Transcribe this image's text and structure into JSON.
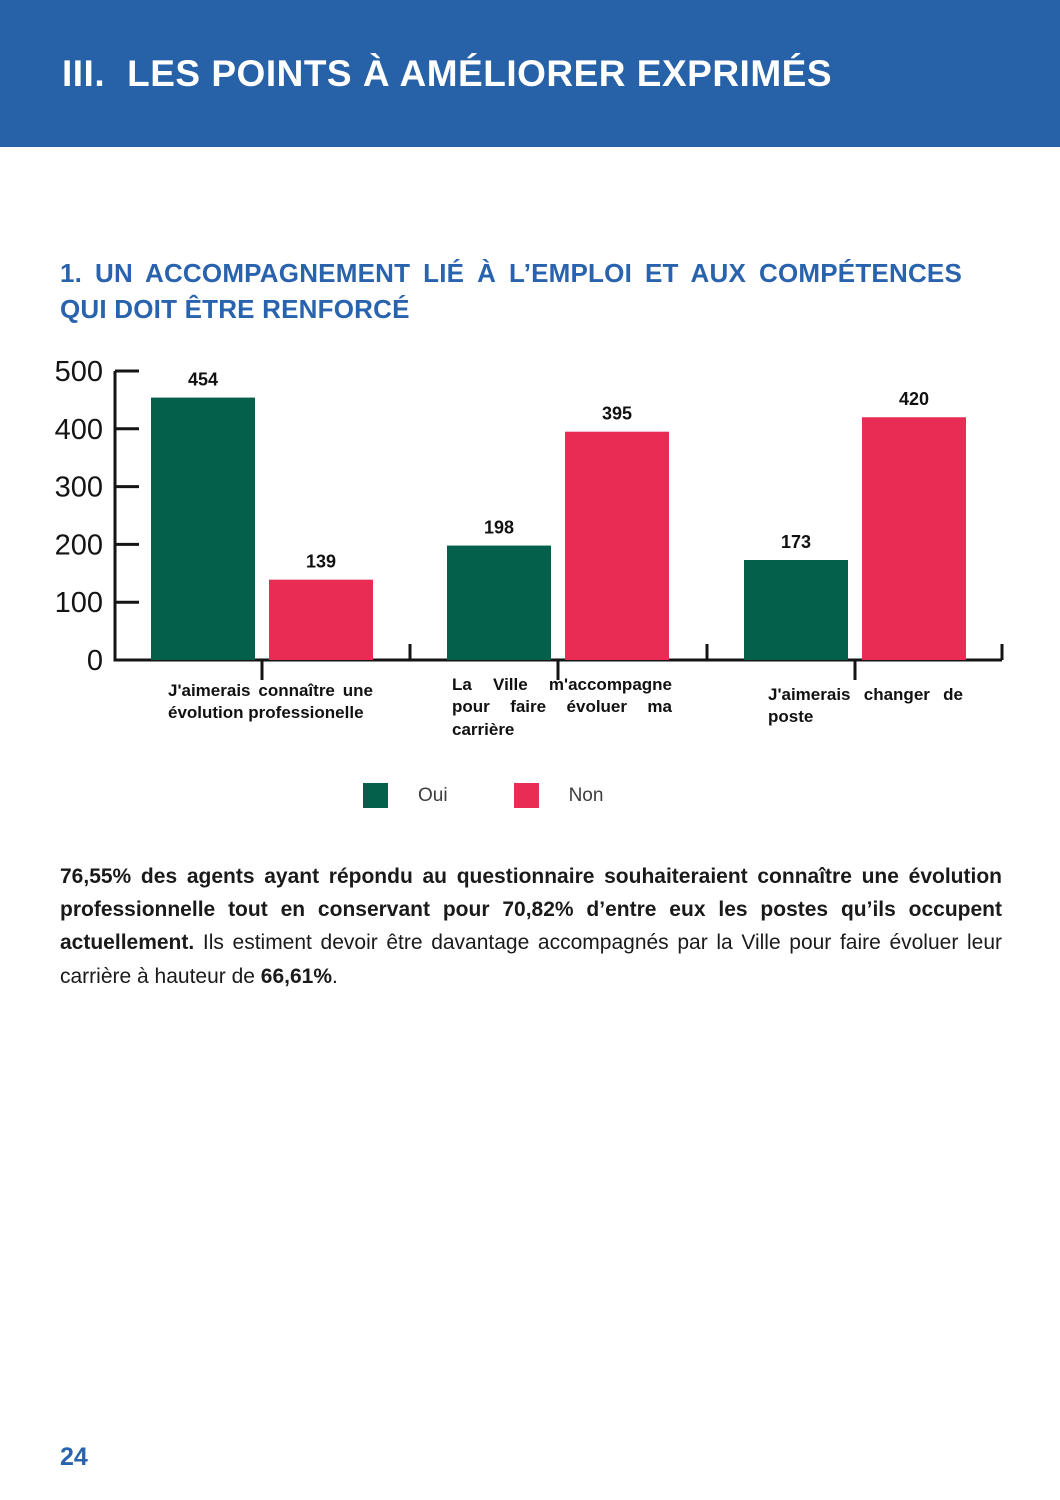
{
  "page": {
    "header": {
      "numeral": "III.",
      "title": "LES POINTS À AMÉLIORER EXPRIMÉS"
    },
    "section_heading": {
      "line1": "1. UN ACCOMPAGNEMENT LIÉ À L’EMPLOI ET AUX COMPÉTENCES",
      "line2": "QUI DOIT ÊTRE RENFORCÉ"
    },
    "page_number": "24"
  },
  "chart_data": {
    "type": "bar",
    "title": "",
    "categories": [
      "J'aimerais connaître une évolution professionelle",
      "La Ville m'accompagne pour faire évoluer ma carrière",
      "J'aimerais changer de poste"
    ],
    "series": [
      {
        "name": "Oui",
        "color": "#04604a",
        "values": [
          454,
          198,
          173
        ]
      },
      {
        "name": "Non",
        "color": "#e92c54",
        "values": [
          139,
          395,
          420
        ]
      }
    ],
    "ylim": [
      0,
      500
    ],
    "yticks": [
      0,
      100,
      200,
      300,
      400,
      500
    ],
    "grid": false,
    "legend_position": "bottom-center",
    "value_labels": true,
    "xlabel": "",
    "ylabel": ""
  },
  "paragraph": {
    "bold_intro": "76,55% des agents ayant répondu au questionnaire souhaiteraient connaître une évolution professionnelle tout en conservant pour 70,82% d’entre eux les postes qu’ils occupent actuellement.",
    "regular_middle": " Ils estiment devoir être davantage accompagnés par la Ville pour faire évoluer leur carrière à hauteur de ",
    "bold_value": "66,61%",
    "regular_end": "."
  },
  "colors": {
    "banner_bg": "#2761a8",
    "heading_text": "#2a63ad",
    "page_number_text": "#2a63ad",
    "axis": "#141414",
    "oui": "#04604a",
    "non": "#e92c54"
  }
}
